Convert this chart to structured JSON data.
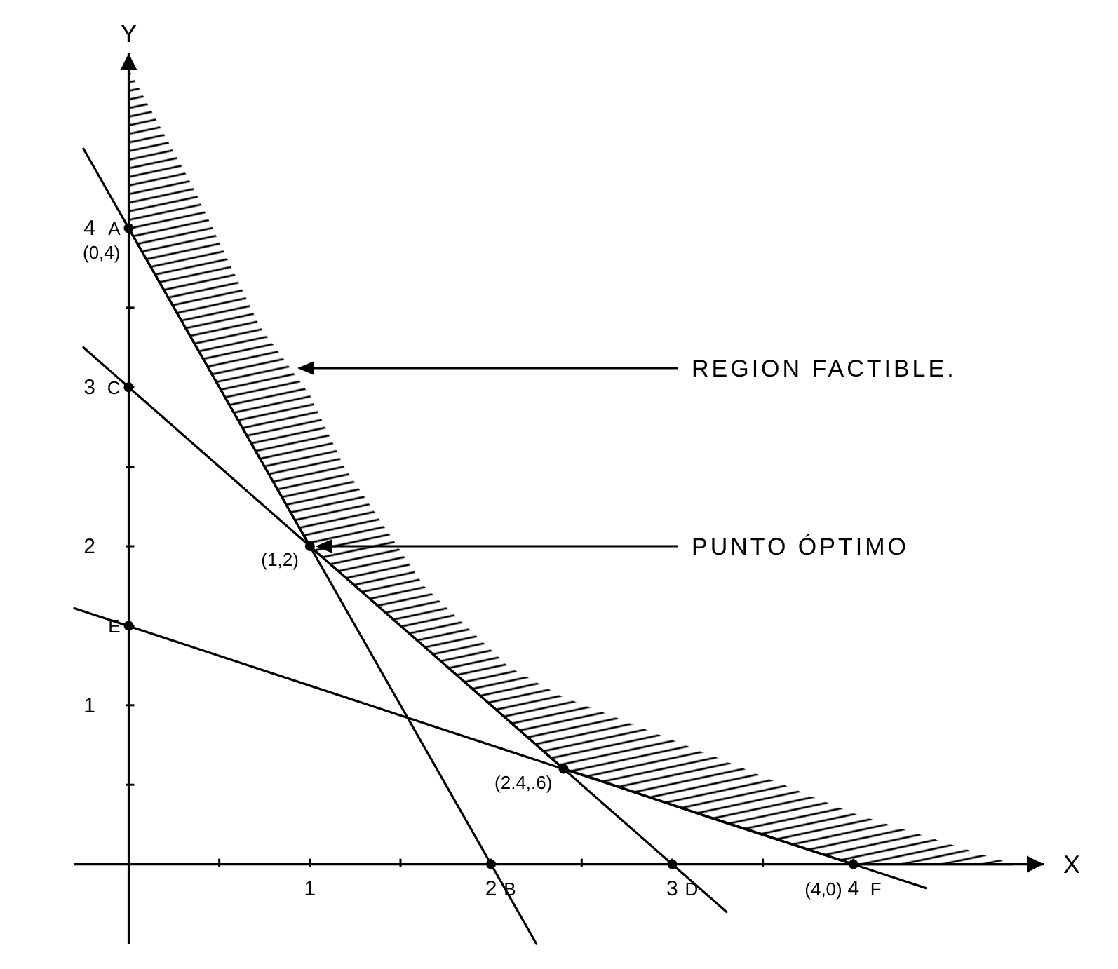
{
  "chart_data": {
    "type": "line",
    "xlabel": "X",
    "ylabel": "Y",
    "xlim": [
      -0.3,
      5.05
    ],
    "ylim": [
      -0.5,
      5.1
    ],
    "xticks": [
      {
        "value": 0.5,
        "label": null
      },
      1,
      {
        "value": 1.5,
        "label": null
      },
      2,
      {
        "value": 2.5,
        "label": null
      },
      3,
      {
        "value": 3.5,
        "label": null
      },
      4
    ],
    "yticks": [
      {
        "value": 0.5,
        "label": null
      },
      1,
      {
        "value": 1.5,
        "label": null
      },
      2,
      {
        "value": 2.5,
        "label": null
      },
      3,
      {
        "value": 3.5,
        "label": null
      },
      4
    ],
    "grid": false,
    "marker": "none",
    "line_style": "solid",
    "series": [
      {
        "color": "#000000",
        "x": [
          -0.25,
          2.25
        ],
        "values": [
          4.5,
          -0.5
        ]
      },
      {
        "color": "#000000",
        "x": [
          -0.25,
          3.3
        ],
        "values": [
          3.25,
          -0.3
        ]
      },
      {
        "color": "#000000",
        "x": [
          -0.3,
          4.4
        ],
        "values": [
          1.61,
          -0.15
        ]
      },
      {
        "color": "#000000",
        "x": [
          0,
          0.35,
          0.72,
          1,
          1.19,
          1.63,
          2.1,
          2.4,
          2.54,
          3.27,
          4,
          4.88
        ],
        "values": [
          4,
          3.3,
          2.56,
          2,
          1.81,
          1.37,
          0.9,
          0.6,
          0.55,
          0.27,
          0,
          0
        ],
        "lower": [
          4,
          3.3,
          2.56,
          2,
          1.81,
          1.37,
          0.9,
          0.6,
          0.55,
          0.27,
          0,
          0
        ],
        "upper": [
          5.0,
          4.27,
          3.39,
          2.95,
          2.5,
          1.75,
          1.24,
          1.05,
          0.99,
          0.66,
          0.32,
          0
        ]
      },
      {
        "type": "scatter",
        "color": "#000000",
        "marker": "circle",
        "x": [
          0,
          0,
          0,
          2,
          3,
          4,
          1,
          2.4
        ],
        "values": [
          4,
          3,
          1.5,
          0,
          0,
          0,
          2,
          0.6
        ]
      }
    ],
    "annotations": [
      {
        "text": "REGION FACTIBLE.",
        "x": 0.9,
        "y": 3.12
      },
      {
        "text": "PUNTO ÓPTIMO",
        "x": 1,
        "y": 2
      },
      {
        "text": "A",
        "x": 0,
        "y": 4
      },
      {
        "text": "(0,4)",
        "x": 0,
        "y": 4
      },
      {
        "text": "C",
        "x": 0,
        "y": 3
      },
      {
        "text": "E",
        "x": 0,
        "y": 1.5
      },
      {
        "text": "(1,2)",
        "x": 1,
        "y": 2
      },
      {
        "text": "(2.4,.6)",
        "x": 2.4,
        "y": 0.6
      },
      {
        "text": "B",
        "x": 2,
        "y": 0
      },
      {
        "text": "D",
        "x": 3,
        "y": 0
      },
      {
        "text": "(4,0)",
        "x": 4,
        "y": 0
      },
      {
        "text": "F",
        "x": 4,
        "y": 0
      }
    ]
  }
}
